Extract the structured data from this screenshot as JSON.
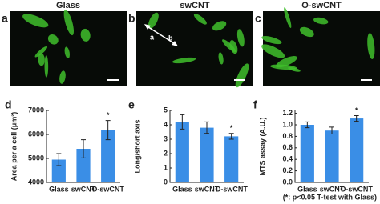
{
  "images": [
    {
      "panel_label": "a",
      "title": "Glass"
    },
    {
      "panel_label": "b",
      "title": "swCNT",
      "arrow_labels": [
        "a",
        "b"
      ]
    },
    {
      "panel_label": "c",
      "title": "O-swCNT"
    }
  ],
  "chart_data": [
    {
      "type": "bar",
      "panel_label": "d",
      "ylabel": "Area per a cell (μm²)",
      "categories": [
        "Glass",
        "swCNT",
        "O-swCNT"
      ],
      "values": [
        4950,
        5400,
        6180
      ],
      "errors": [
        250,
        380,
        400
      ],
      "markers": [
        null,
        null,
        "*"
      ],
      "color": "#3a8ee6",
      "ylim": [
        4000,
        7000
      ],
      "yticks": [
        4000,
        5000,
        6000,
        7000
      ]
    },
    {
      "type": "bar",
      "panel_label": "e",
      "ylabel": "Long/short axis",
      "categories": [
        "Glass",
        "swCNT",
        "O-swCNT"
      ],
      "values": [
        4.2,
        3.8,
        3.2
      ],
      "errors": [
        0.5,
        0.4,
        0.2
      ],
      "markers": [
        null,
        null,
        "*"
      ],
      "color": "#3a8ee6",
      "ylim": [
        0,
        5
      ],
      "yticks": [
        0,
        1,
        2,
        3,
        4,
        5
      ]
    },
    {
      "type": "bar",
      "panel_label": "f",
      "ylabel": "MTS assay (A.U.)",
      "categories": [
        "Glass",
        "swCNT",
        "O-swCNT"
      ],
      "values": [
        1.0,
        0.9,
        1.11
      ],
      "errors": [
        0.05,
        0.06,
        0.05
      ],
      "markers": [
        null,
        null,
        "*"
      ],
      "color": "#3a8ee6",
      "ylim": [
        0,
        1.25
      ],
      "yticks": [
        {
          "value": 0,
          "label": "0.0"
        },
        0.2,
        0.4,
        0.6,
        0.8,
        {
          "value": 1,
          "label": "1.0"
        },
        1.2
      ]
    }
  ],
  "footnote": "(*: p<0.05 T-test with Glass)"
}
